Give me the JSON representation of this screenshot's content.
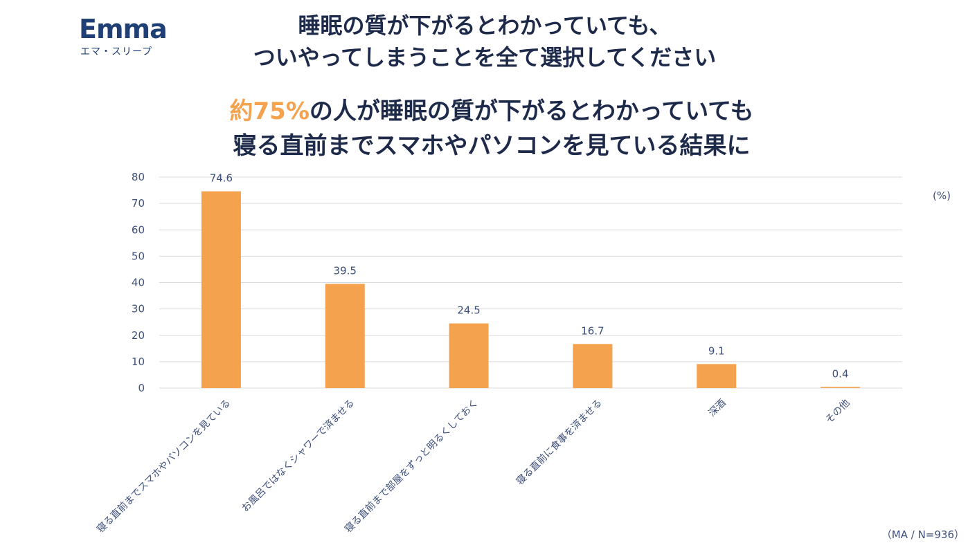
{
  "logo": {
    "word": "Emma",
    "sub": "エマ・スリープ"
  },
  "title": {
    "line1": "睡眠の質が下がるとわかっていても、",
    "line2": "ついやってしまうことを全て選択してください"
  },
  "headline": {
    "accent": "約75%",
    "line1_rest": "の人が睡眠の質が下がるとわかっていても",
    "line2": "寝る直前までスマホやパソコンを見ている結果に"
  },
  "unit_label": "(%)",
  "footnote": "（MA / N=936）",
  "colors": {
    "bar": "#f5a24f",
    "text": "#1e2a4a",
    "axis_text": "#3d4f7a",
    "grid": "#d9d9d9"
  },
  "chart_data": {
    "type": "bar",
    "categories": [
      "寝る直前までスマホやパソコンを見ている",
      "お風呂ではなくシャワーで済ませる",
      "寝る直前まで部屋をずっと明るくしておく",
      "寝る直前に食事を済ませる",
      "深酒",
      "その他"
    ],
    "values": [
      74.6,
      39.5,
      24.5,
      16.7,
      9.1,
      0.4
    ],
    "value_labels": [
      "74.6",
      "39.5",
      "24.5",
      "16.7",
      "9.1",
      "0.4"
    ],
    "ylim": [
      0,
      80
    ],
    "yticks": [
      "0",
      "10",
      "20",
      "30",
      "40",
      "50",
      "60",
      "70",
      "80"
    ],
    "ylabel": "(%)",
    "grid": true,
    "legend": "none"
  }
}
